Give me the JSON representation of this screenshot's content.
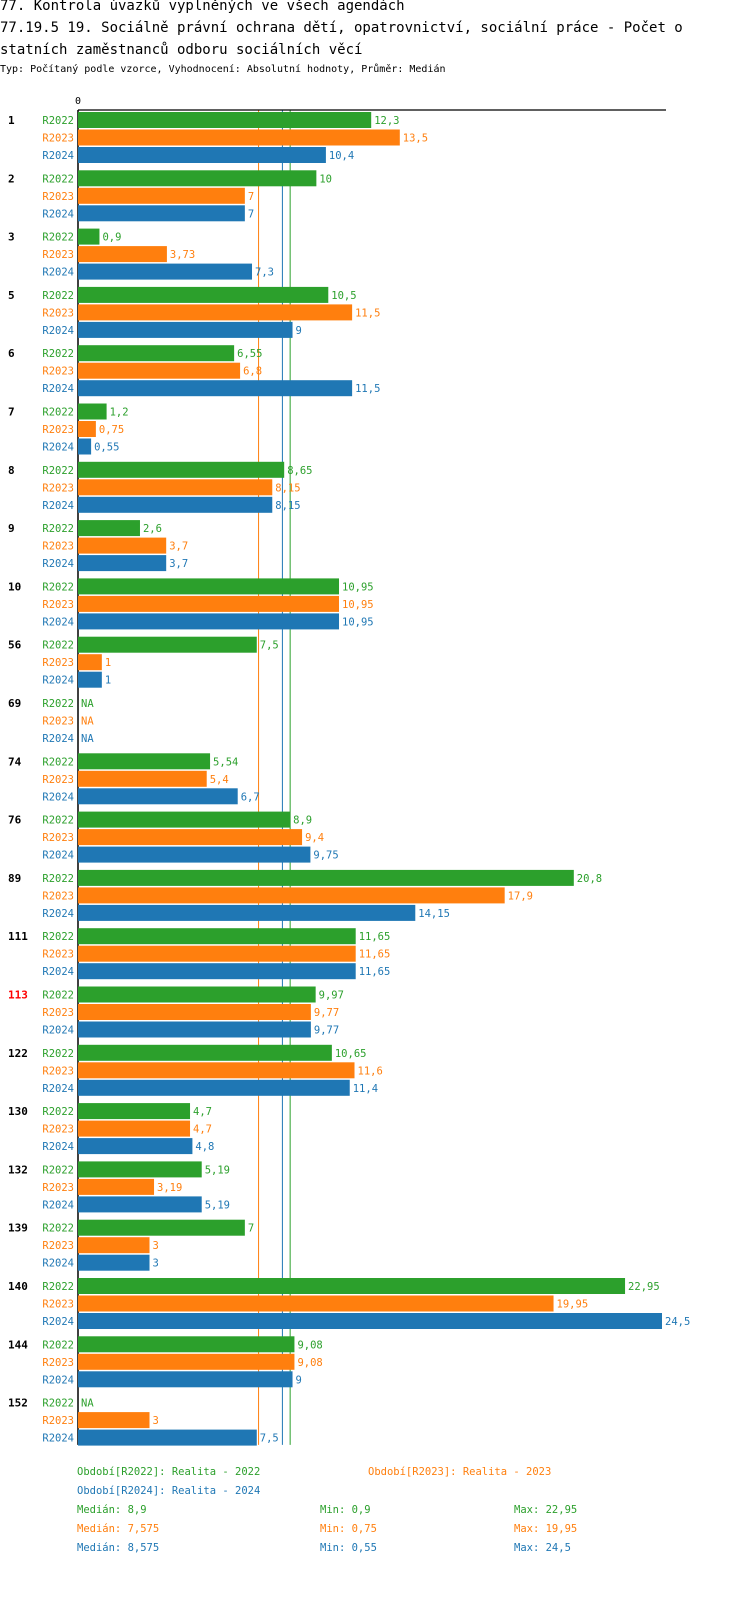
{
  "header": {
    "title1": "77. Kontrola úvazků vyplněných ve všech agendách",
    "title2": "77.19.5 19. Sociálně právní ochrana dětí, opatrovnictví, sociální práce - Počet o",
    "title3": "statních zaměstnanců odboru sociálních věcí",
    "subtitle": "Typ: Počítaný podle vzorce, Vyhodnocení: Absolutní hodnoty, Průměr: Medián"
  },
  "chart_data": {
    "type": "bar",
    "orientation": "horizontal",
    "axis_zero_label": "0",
    "xlim": [
      0,
      24.5
    ],
    "highlight_category": "113",
    "highlight_color": "#ff0000",
    "categories": [
      "1",
      "2",
      "3",
      "5",
      "6",
      "7",
      "8",
      "9",
      "10",
      "56",
      "69",
      "74",
      "76",
      "89",
      "111",
      "113",
      "122",
      "130",
      "132",
      "139",
      "140",
      "144",
      "152"
    ],
    "series": [
      {
        "name": "R2022",
        "color": "#2ca02c",
        "values": [
          12.3,
          10,
          0.9,
          10.5,
          6.55,
          1.2,
          8.65,
          2.6,
          10.95,
          7.5,
          null,
          5.54,
          8.9,
          20.8,
          11.65,
          9.97,
          10.65,
          4.7,
          5.19,
          7,
          22.95,
          9.08,
          null
        ],
        "labels": [
          "12,3",
          "10",
          "0,9",
          "10,5",
          "6,55",
          "1,2",
          "8,65",
          "2,6",
          "10,95",
          "7,5",
          "NA",
          "5,54",
          "8,9",
          "20,8",
          "11,65",
          "9,97",
          "10,65",
          "4,7",
          "5,19",
          "7",
          "22,95",
          "9,08",
          "NA"
        ]
      },
      {
        "name": "R2023",
        "color": "#ff7f0e",
        "values": [
          13.5,
          7,
          3.73,
          11.5,
          6.8,
          0.75,
          8.15,
          3.7,
          10.95,
          1,
          null,
          5.4,
          9.4,
          17.9,
          11.65,
          9.77,
          11.6,
          4.7,
          3.19,
          3,
          19.95,
          9.08,
          3
        ],
        "labels": [
          "13,5",
          "7",
          "3,73",
          "11,5",
          "6,8",
          "0,75",
          "8,15",
          "3,7",
          "10,95",
          "1",
          "NA",
          "5,4",
          "9,4",
          "17,9",
          "11,65",
          "9,77",
          "11,6",
          "4,7",
          "3,19",
          "3",
          "19,95",
          "9,08",
          "3"
        ]
      },
      {
        "name": "R2024",
        "color": "#1f77b4",
        "values": [
          10.4,
          7,
          7.3,
          9,
          11.5,
          0.55,
          8.15,
          3.7,
          10.95,
          1,
          null,
          6.7,
          9.75,
          14.15,
          11.65,
          9.77,
          11.4,
          4.8,
          5.19,
          3,
          24.5,
          9,
          7.5
        ],
        "labels": [
          "10,4",
          "7",
          "7,3",
          "9",
          "11,5",
          "0,55",
          "8,15",
          "3,7",
          "10,95",
          "1",
          "NA",
          "6,7",
          "9,75",
          "14,15",
          "11,65",
          "9,77",
          "11,4",
          "4,8",
          "5,19",
          "3",
          "24,5",
          "9",
          "7,5"
        ]
      }
    ],
    "median_lines": [
      {
        "series": "R2022",
        "value": 8.9,
        "color": "#2ca02c"
      },
      {
        "series": "R2023",
        "value": 7.575,
        "color": "#ff7f0e"
      },
      {
        "series": "R2024",
        "value": 8.575,
        "color": "#1f77b4"
      }
    ]
  },
  "legend": {
    "r2022": "Období[R2022]: Realita - 2022",
    "r2023": "Období[R2023]: Realita - 2023",
    "r2024": "Období[R2024]: Realita - 2024",
    "stats": [
      {
        "median": "Medián: 8,9",
        "min": "Min: 0,9",
        "max": "Max: 22,95",
        "color": "#2ca02c"
      },
      {
        "median": "Medián: 7,575",
        "min": "Min: 0,75",
        "max": "Max: 19,95",
        "color": "#ff7f0e"
      },
      {
        "median": "Medián: 8,575",
        "min": "Min: 0,55",
        "max": "Max: 24,5",
        "color": "#1f77b4"
      }
    ]
  }
}
